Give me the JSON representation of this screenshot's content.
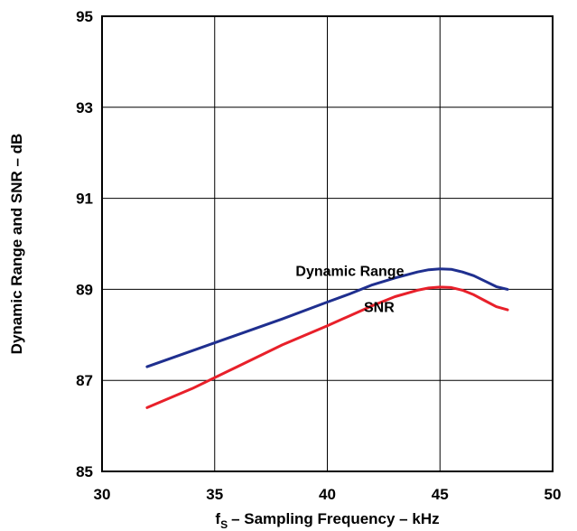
{
  "chart_data": {
    "type": "line",
    "xlabel": "– Sampling Frequency – kHz",
    "xlabel_prefix": "f",
    "xlabel_subscript": "S",
    "ylabel": "Dynamic Range and SNR – dB",
    "xlim": [
      30,
      50
    ],
    "ylim": [
      85,
      95
    ],
    "xticks": [
      "30",
      "35",
      "40",
      "45",
      "50"
    ],
    "yticks": [
      "85",
      "87",
      "89",
      "91",
      "93",
      "95"
    ],
    "grid": true,
    "series": [
      {
        "name": "Dynamic Range",
        "color": "#1f2f8f",
        "x": [
          32,
          34,
          36,
          38,
          40,
          41,
          42,
          43,
          44,
          44.5,
          45,
          45.5,
          46,
          46.5,
          47,
          47.5,
          48
        ],
        "y": [
          87.3,
          87.65,
          88.0,
          88.35,
          88.72,
          88.9,
          89.1,
          89.25,
          89.38,
          89.43,
          89.45,
          89.44,
          89.38,
          89.3,
          89.18,
          89.06,
          89.0
        ]
      },
      {
        "name": "SNR",
        "color": "#e8202a",
        "x": [
          32,
          34,
          36,
          38,
          40,
          41,
          42,
          43,
          44,
          44.5,
          45,
          45.5,
          46,
          46.5,
          47,
          47.5,
          48
        ],
        "y": [
          86.4,
          86.82,
          87.3,
          87.78,
          88.2,
          88.42,
          88.64,
          88.84,
          88.98,
          89.03,
          89.05,
          89.04,
          88.98,
          88.88,
          88.75,
          88.62,
          88.55
        ]
      }
    ],
    "annotations": [
      {
        "text": "Dynamic Range",
        "x": 41,
        "y": 89.3
      },
      {
        "text": "SNR",
        "x": 42.3,
        "y": 88.5
      }
    ]
  }
}
